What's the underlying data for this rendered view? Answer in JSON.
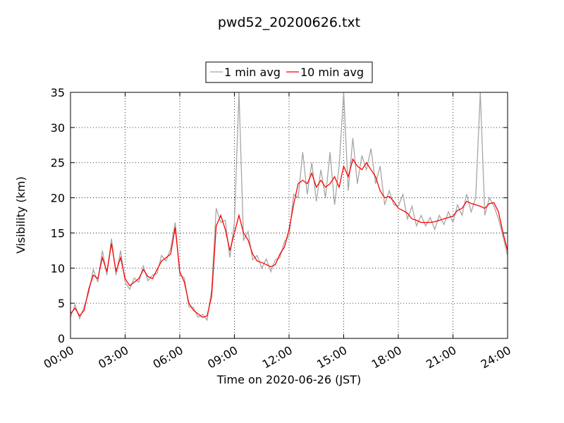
{
  "chart_data": {
    "type": "line",
    "title": "pwd52_20200626.txt",
    "xlabel": "Time on 2020-06-26 (JST)",
    "ylabel": "Visibility (km)",
    "x": [
      0,
      0.25,
      0.5,
      0.75,
      1,
      1.25,
      1.5,
      1.75,
      2,
      2.25,
      2.5,
      2.75,
      3,
      3.25,
      3.5,
      3.75,
      4,
      4.25,
      4.5,
      4.75,
      5,
      5.25,
      5.5,
      5.75,
      6,
      6.25,
      6.5,
      6.75,
      7,
      7.25,
      7.5,
      7.75,
      8,
      8.25,
      8.5,
      8.75,
      9,
      9.25,
      9.5,
      9.75,
      10,
      10.25,
      10.5,
      10.75,
      11,
      11.25,
      11.5,
      11.75,
      12,
      12.25,
      12.5,
      12.75,
      13,
      13.25,
      13.5,
      13.75,
      14,
      14.25,
      14.5,
      14.75,
      15,
      15.25,
      15.5,
      15.75,
      16,
      16.25,
      16.5,
      16.75,
      17,
      17.25,
      17.5,
      17.75,
      18,
      18.25,
      18.5,
      18.75,
      19,
      19.25,
      19.5,
      19.75,
      20,
      20.25,
      20.5,
      20.75,
      21,
      21.25,
      21.5,
      21.75,
      22,
      22.25,
      22.5,
      22.75,
      23,
      23.25,
      23.5,
      23.75,
      24
    ],
    "series": [
      {
        "name": "1 min avg",
        "color": "#a6a6a6",
        "values": [
          3.0,
          4.8,
          2.8,
          4.5,
          6.5,
          9.8,
          8.0,
          12.5,
          9.0,
          14.2,
          9.0,
          12.5,
          8.0,
          7.0,
          8.6,
          8.0,
          10.3,
          8.2,
          9.0,
          9.2,
          11.8,
          11.0,
          12.8,
          16.5,
          9.0,
          8.6,
          4.5,
          4.4,
          3.0,
          3.4,
          2.6,
          7.0,
          18.5,
          16.5,
          16.8,
          11.5,
          16.5,
          35,
          14.0,
          15.2,
          11.2,
          11.8,
          10.0,
          11.3,
          9.5,
          11.2,
          11.5,
          13.8,
          14.5,
          20.5,
          20.0,
          26.5,
          20.5,
          25.0,
          19.5,
          24.0,
          20.0,
          26.5,
          19.0,
          24.5,
          35,
          21.0,
          28.5,
          22.0,
          26.0,
          24.0,
          27.0,
          22.0,
          24.5,
          19.0,
          21.0,
          19.0,
          18.8,
          20.5,
          17.0,
          18.8,
          16.0,
          17.5,
          16.0,
          17.2,
          15.5,
          17.5,
          16.2,
          18.0,
          16.5,
          19.0,
          17.5,
          20.5,
          18.0,
          20.0,
          35,
          17.5,
          20.0,
          18.8,
          17.0,
          14.5,
          11.8
        ]
      },
      {
        "name": "10 min avg",
        "color": "#ff0000",
        "values": [
          3.5,
          4.3,
          3.2,
          4,
          7,
          9,
          8.5,
          11.5,
          9.5,
          13.5,
          9.5,
          11.5,
          8.5,
          7.5,
          8,
          8.5,
          9.8,
          8.8,
          8.5,
          9.8,
          11,
          11.5,
          12,
          15.8,
          9.5,
          8,
          5,
          4,
          3.5,
          3,
          3.2,
          6,
          16,
          17.5,
          15.5,
          12.5,
          15,
          17.5,
          15,
          14,
          12,
          11,
          10.8,
          10.5,
          10.2,
          10.5,
          12,
          13,
          15.5,
          19,
          22,
          22.5,
          22,
          23.5,
          21.5,
          22.5,
          21.5,
          22,
          23,
          21.5,
          24.5,
          23,
          25.5,
          24.5,
          24,
          25,
          24,
          23,
          21,
          20,
          20.2,
          19.5,
          18.5,
          18.2,
          17.8,
          17,
          16.8,
          16.5,
          16.5,
          16.5,
          16.6,
          16.8,
          17,
          17.2,
          17.4,
          18.2,
          18.5,
          19.5,
          19.2,
          19,
          18.8,
          18.5,
          19.2,
          19.3,
          18,
          15,
          12.5
        ]
      }
    ],
    "xlim": [
      0,
      24
    ],
    "xticks": [
      {
        "value": 0,
        "label": "00:00"
      },
      {
        "value": 3,
        "label": "03:00"
      },
      {
        "value": 6,
        "label": "06:00"
      },
      {
        "value": 9,
        "label": "09:00"
      },
      {
        "value": 12,
        "label": "12:00"
      },
      {
        "value": 15,
        "label": "15:00"
      },
      {
        "value": 18,
        "label": "18:00"
      },
      {
        "value": 21,
        "label": "21:00"
      },
      {
        "value": 24,
        "label": "24:00"
      }
    ],
    "ylim": [
      0,
      35
    ],
    "yticks": [
      0,
      5,
      10,
      15,
      20,
      25,
      30,
      35
    ],
    "grid": true,
    "legend": "top"
  }
}
